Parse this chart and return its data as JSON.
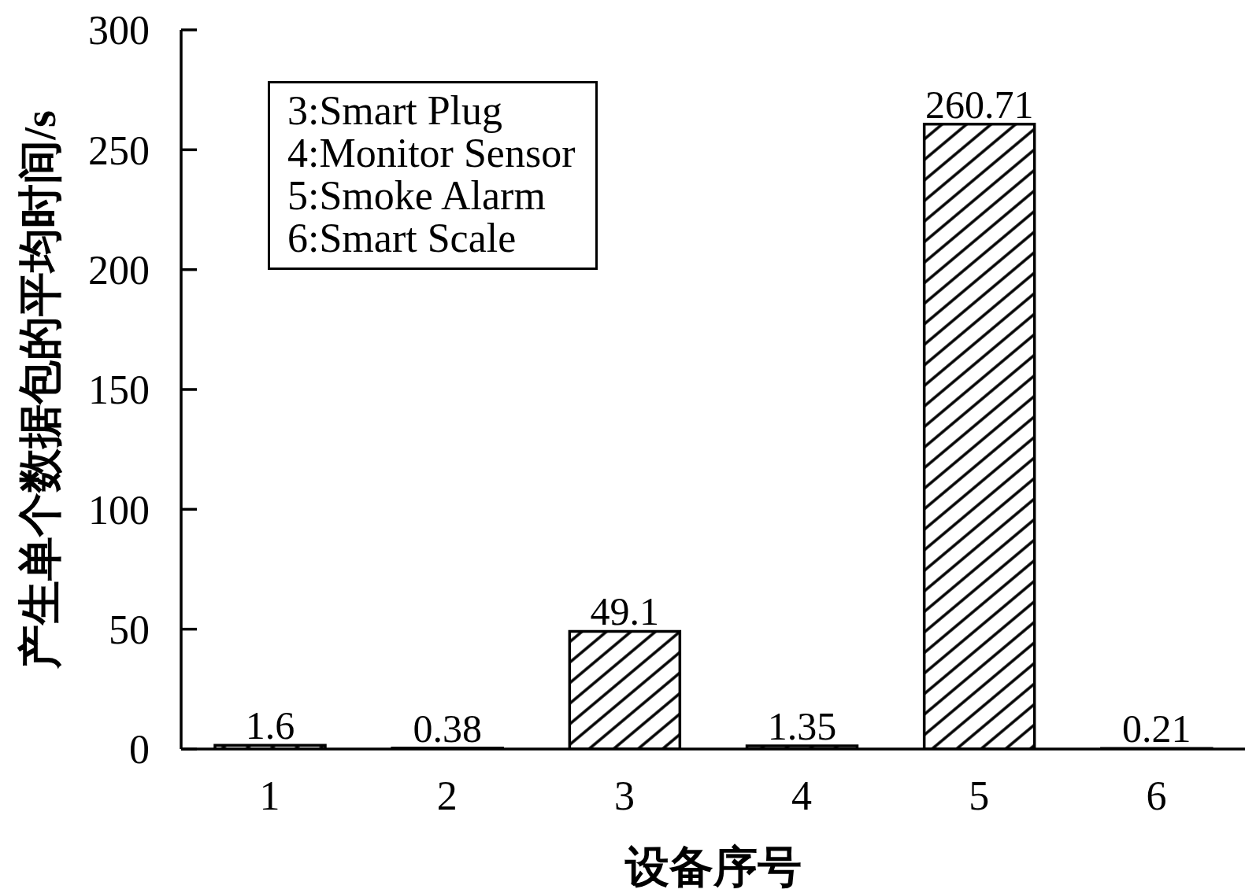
{
  "chart_data": {
    "type": "bar",
    "xlabel": "设备序号",
    "ylabel": "产生单个数据包的平均时间/s",
    "categories": [
      "1",
      "2",
      "3",
      "4",
      "5",
      "6"
    ],
    "values": [
      1.6,
      0.38,
      49.1,
      1.35,
      260.71,
      0.21
    ],
    "color": "#000000",
    "ylim": [
      0,
      300
    ],
    "yticks": [
      0,
      50,
      100,
      150,
      200,
      250,
      300
    ],
    "data_labels": true,
    "annotations": [
      "3:Smart Plug",
      "4:Monitor Sensor",
      "5:Smoke Alarm",
      "6:Smart Scale"
    ]
  }
}
